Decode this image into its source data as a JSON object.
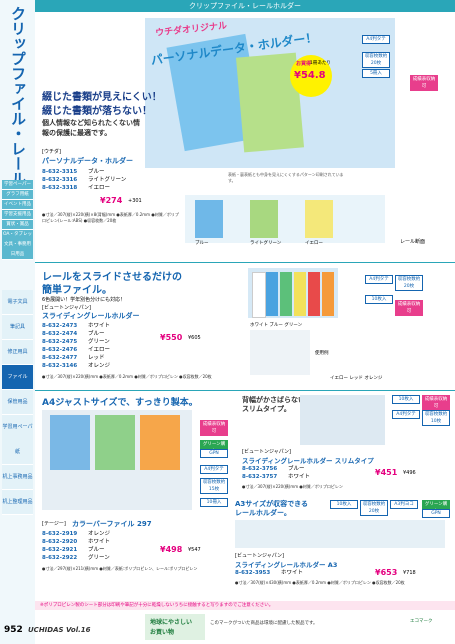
{
  "header": {
    "title": "クリップファイル・レールホルダー"
  },
  "sidebar": {
    "vertical_title": "クリップファイル・レールホルダー",
    "upper_tabs": [
      "学習ペーパー",
      "グラフ用紙",
      "イベント用品",
      "学習支援用品",
      "賞状・賞品",
      "OA・タブレット用品",
      "文具・事務用品",
      "日用品"
    ],
    "lower_tabs": [
      "電子文具",
      "筆記具",
      "修正用具",
      "ファイル",
      "保管用品",
      "学習用ペーパー",
      "紙",
      "机上事務用品",
      "机上整理用品"
    ]
  },
  "section1": {
    "catch_1": "ウチダオリジナル",
    "catch_2": "パーソナルデータ・ホルダー！",
    "deal_label": "お買得",
    "deal_per": "1冊あたり",
    "deal_price": "¥54.8",
    "badge_size": "A4判タテ",
    "badge_sheets": "収容枚数約20枚",
    "badge_pack": "5冊入",
    "badge_grade": "成績表収納可",
    "headline_1": "綴じた書類が見えにくい！",
    "headline_2": "綴じた書類が落ちない！",
    "body": "個人情報など知られたくない情報の保護に最適です。",
    "note": "表紙・裏表紙とも中身を見えにくくするパターン印刷されています。",
    "maker": "[ウチダ]",
    "product": "パーソナルデータ・ホルダー",
    "rows": [
      {
        "code": "8-632-3315",
        "color": "ブルー"
      },
      {
        "code": "8-632-3316",
        "color": "ライトグリーン"
      },
      {
        "code": "8-632-3318",
        "color": "イエロー"
      }
    ],
    "price": "¥274",
    "price_tax": "+301",
    "photo_labels": [
      "ブルー",
      "ライトグリーン",
      "イエロー"
    ],
    "rail_label": "レール断面",
    "spec": "●寸法／307(縦)×220(横)×8(背幅)mm ●表紙厚／0.2mm ●材質／ポリプロピレン(レール:ABS) ●収容枚数／20枚"
  },
  "section2": {
    "headline_1": "レールをスライドさせるだけの",
    "headline_2": "簡単ファイル。",
    "sub": "6色展開い！学年別色分けにも対応！",
    "maker": "[ビュートンジャパン]",
    "product": "スライディングレールホルダー",
    "rows": [
      {
        "code": "8-632-2473",
        "color": "ホワイト"
      },
      {
        "code": "8-632-2474",
        "color": "ブルー"
      },
      {
        "code": "8-632-2475",
        "color": "グリーン"
      },
      {
        "code": "8-632-2476",
        "color": "イエロー"
      },
      {
        "code": "8-632-2477",
        "color": "レッド"
      },
      {
        "code": "8-632-3146",
        "color": "オレンジ"
      }
    ],
    "price": "¥550",
    "price_tax": "¥605",
    "badge_size": "A4判タテ",
    "badge_sheets": "収容枚数約20枚",
    "badge_pack": "10枚入",
    "badge_grade": "成績表収納可",
    "caption_1": "ホワイト ブルー グリーン",
    "caption_2": "イエロー レッド オレンジ",
    "usage": "使用例",
    "spec": "●寸法／307(縦)×220(横)mm ●表紙厚／0.2mm ●材質／ポリプロピレン ●収容枚数／20枚"
  },
  "section3": {
    "headline": "A4ジャストサイズで、すっきり製本。",
    "badge_grade": "成績表収納可",
    "badge_size": "A4判タテ",
    "badge_sheets": "収容枚数約15枚",
    "badge_pack": "10冊入",
    "green": "グリーン購入",
    "gpn": "GPN",
    "maker": "[テージー]",
    "product": "カラーバーファイル 297",
    "rows": [
      {
        "code": "8-632-2919",
        "color": "オレンジ"
      },
      {
        "code": "8-632-2920",
        "color": "ホワイト"
      },
      {
        "code": "8-632-2921",
        "color": "ブルー"
      },
      {
        "code": "8-632-2922",
        "color": "グリーン"
      }
    ],
    "price": "¥498",
    "price_tax": "¥547",
    "spec": "●寸法／297(縦)×211(横)mm ●材質／表紙:ポリプロピレン、レール:ポリプロピレン"
  },
  "section4": {
    "headline_1": "背幅がかさばらない",
    "headline_2": "スリムタイプ。",
    "badge_pack": "10枚入",
    "badge_grade": "成績表収納可",
    "badge_size": "A4判タテ",
    "badge_sheets": "収容枚数約10枚",
    "maker": "[ビュートンジャパン]",
    "product": "スライディングレールホルダー スリムタイプ",
    "rows": [
      {
        "code": "8-632-3756",
        "color": "ブルー"
      },
      {
        "code": "8-632-3757",
        "color": "ホワイト"
      }
    ],
    "price": "¥451",
    "price_tax": "¥496",
    "spec": "●寸法／307(縦)×220(横)mm ●材質／ポリプロピレン"
  },
  "section5": {
    "headline_1": "A3サイズが収容できる",
    "headline_2": "レールホルダー。",
    "badge_pack": "10枚入",
    "badge_sheets": "収容枚数約20枚",
    "badge_size": "A3判ヨコ",
    "green": "グリーン購入",
    "gpn": "GPN",
    "maker": "[ビュートンジャパン]",
    "product": "スライディングレールホルダー A3",
    "rows": [
      {
        "code": "8-632-3953",
        "color": "ホワイト"
      }
    ],
    "price": "¥653",
    "price_tax": "¥718",
    "spec": "●寸法／307(縦)×430(横)mm ●表紙厚／0.2mm ●材質／ポリプロピレン ●収容枚数／20枚"
  },
  "footer": {
    "note": "※ポリプロピレン製のシート部分は印刷や筆記が十分に乾燥しないうちに接触すると写りますのでご注意ください。",
    "page": "952",
    "brand": "UCHIDAS Vol.16",
    "eco_1": "地球にやさしい",
    "eco_2": "お買い物",
    "eco_text": "このマークがついた商品は環境に配慮した製品です。",
    "eco_mark": "エコマーク"
  }
}
